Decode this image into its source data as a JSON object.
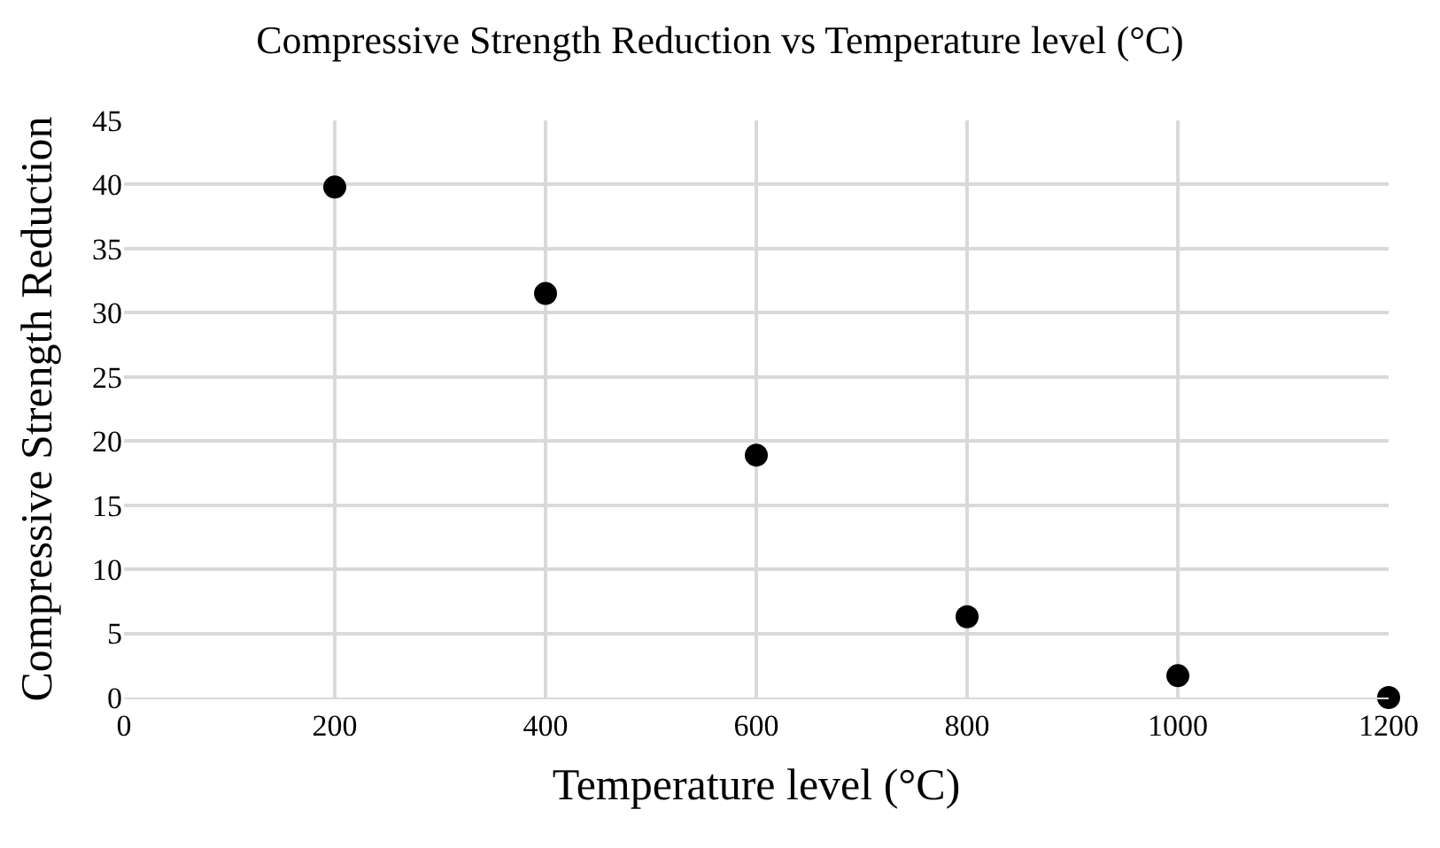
{
  "chart_data": {
    "type": "scatter",
    "title": "Compressive Strength Reduction vs Temperature level (°C)",
    "xlabel": "Temperature level (°C)",
    "ylabel": "Compressive Strength Reduction",
    "x": [
      200,
      400,
      600,
      800,
      1000,
      1200
    ],
    "series": [
      {
        "color": "#000000",
        "values": [
          39.8,
          31.5,
          18.9,
          6.3,
          1.7,
          0
        ]
      }
    ],
    "xlim": [
      0,
      1200
    ],
    "xticks": [
      0,
      200,
      400,
      600,
      800,
      1000,
      1200
    ],
    "ylim": [
      0,
      45
    ],
    "yticks": [
      0,
      5,
      10,
      15,
      20,
      25,
      30,
      35,
      40,
      45
    ],
    "grid": true,
    "marker": "circle"
  }
}
